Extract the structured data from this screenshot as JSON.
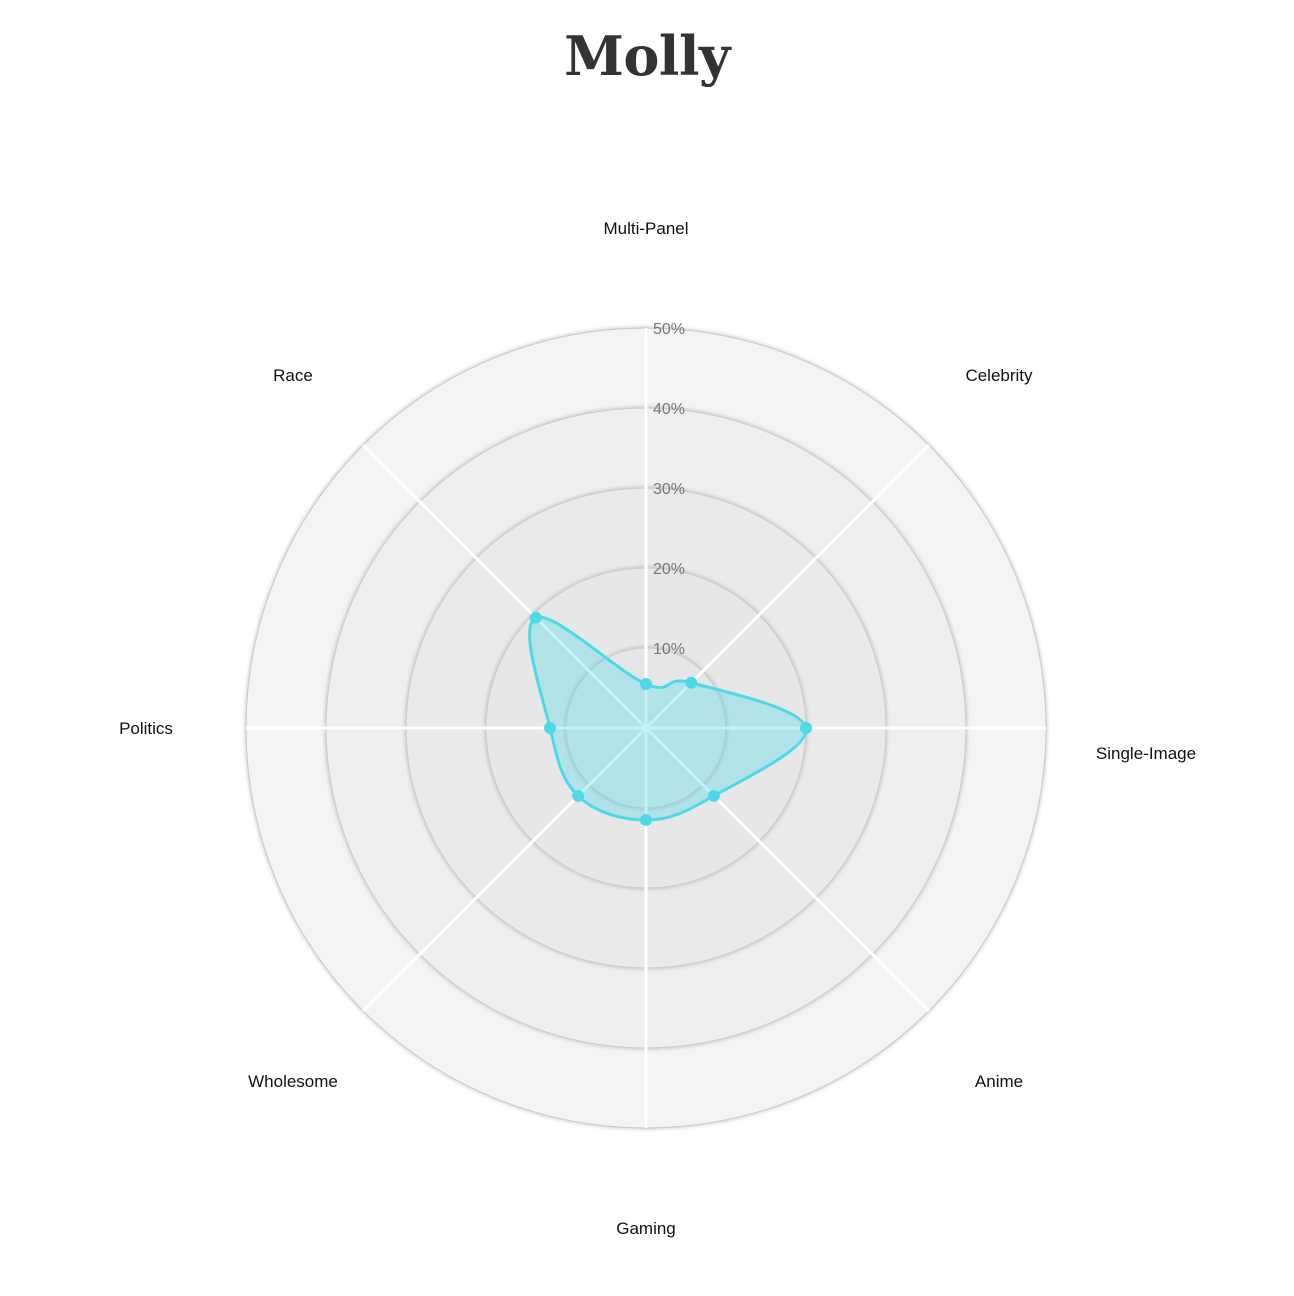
{
  "title": "Molly",
  "chart_data": {
    "type": "radar",
    "title": "Molly",
    "categories": [
      "Multi-Panel",
      "Celebrity",
      "Single-Image",
      "Anime",
      "Gaming",
      "Wholesome",
      "Politics",
      "Race"
    ],
    "series": [
      {
        "values": [
          5.5,
          8,
          20,
          12,
          11.5,
          12,
          12,
          19.5
        ]
      }
    ],
    "rlim": [
      0,
      50
    ],
    "ticks": [
      10,
      20,
      30,
      40,
      50
    ],
    "tick_labels": [
      "10%",
      "20%",
      "30%",
      "40%",
      "50%"
    ],
    "grid": true,
    "legend": "none",
    "colors": {
      "line": "#4dd9e8",
      "fill": "rgba(77, 217, 232, 0.35)",
      "point": "#4dd9e8",
      "ring_outer": "#f4f4f4",
      "ring_inner": "#e4e4e4",
      "ring_stroke": "#cccccc",
      "spoke": "#ffffff"
    }
  }
}
